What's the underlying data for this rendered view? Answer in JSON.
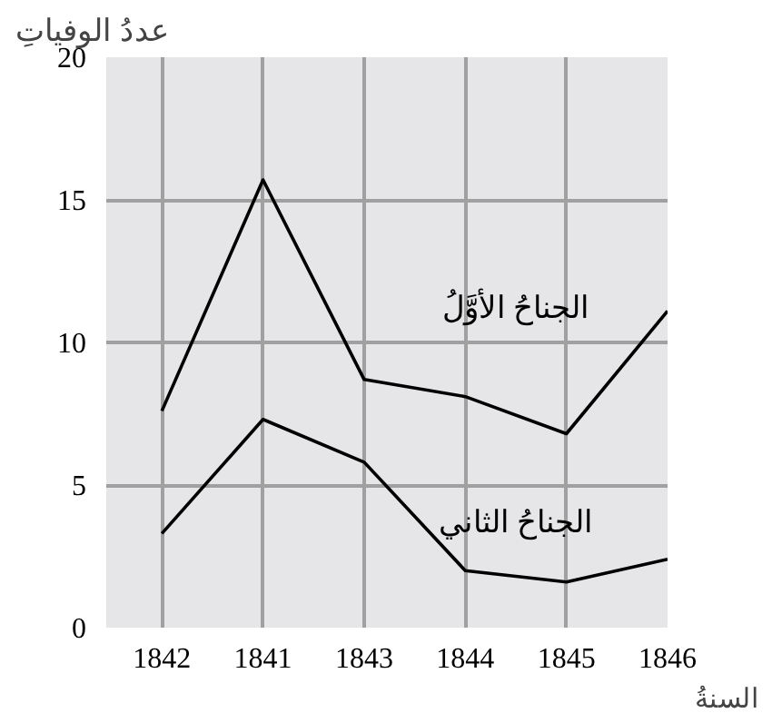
{
  "chart_data": {
    "type": "line",
    "xlabel": "السنةُ",
    "ylabel": "عددُ الوفياتِ",
    "categories": [
      "1842",
      "1841",
      "1843",
      "1844",
      "1845",
      "1846"
    ],
    "series": [
      {
        "name": "الجناحُ الأوَّلُ",
        "color": "#000000",
        "values": [
          7.6,
          15.7,
          8.7,
          8.1,
          6.8,
          11.1
        ]
      },
      {
        "name": "الجناحُ الثاني",
        "color": "#000000",
        "values": [
          3.3,
          7.3,
          5.8,
          2.0,
          1.6,
          2.4
        ]
      }
    ],
    "ylim": [
      0,
      20
    ],
    "yticks": [
      0,
      5,
      10,
      15,
      20
    ],
    "grid": true,
    "legend": false,
    "marker": "none",
    "line_style": "solid"
  }
}
